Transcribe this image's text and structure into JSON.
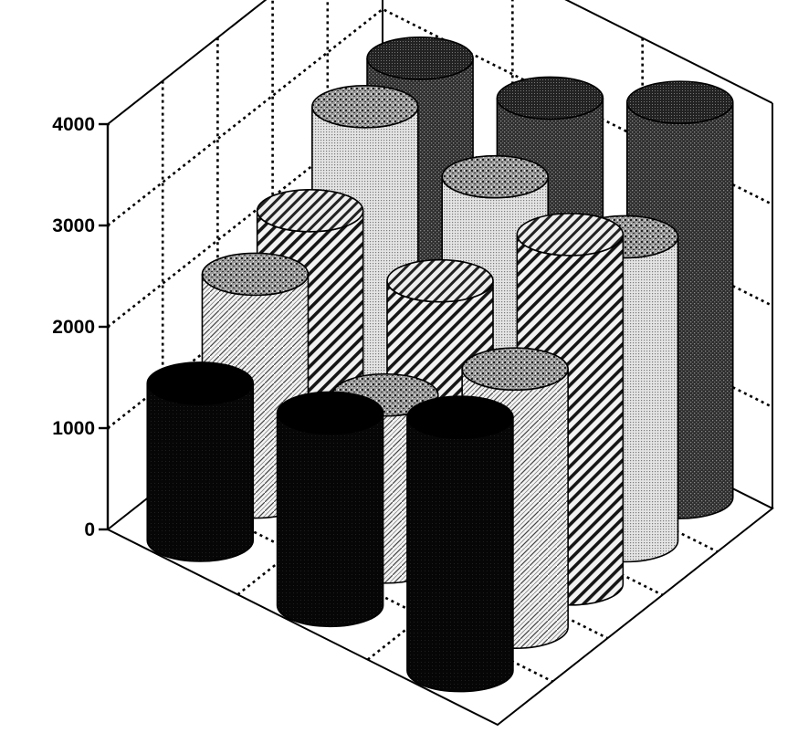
{
  "chart_data": {
    "type": "bar",
    "subtype": "3d-cylinder",
    "title": "",
    "xlabel": "",
    "ylabel": "",
    "zlim": [
      0,
      4000
    ],
    "z_ticks": [
      "0",
      "1000",
      "2000",
      "3000",
      "4000"
    ],
    "grid": true,
    "grid_style": "dotted",
    "legend": "none",
    "rows": [
      {
        "fill": "dark-dots",
        "values": [
          3050,
          3300,
          3900
        ]
      },
      {
        "fill": "light-dots",
        "values": [
          3000,
          2950,
          3000
        ]
      },
      {
        "fill": "diagonal-hatch",
        "values": [
          2400,
          2350,
          3450
        ]
      },
      {
        "fill": "crosshatch",
        "values": [
          2200,
          1650,
          2550
        ]
      },
      {
        "fill": "black",
        "values": [
          1550,
          1900,
          2500
        ]
      }
    ]
  }
}
